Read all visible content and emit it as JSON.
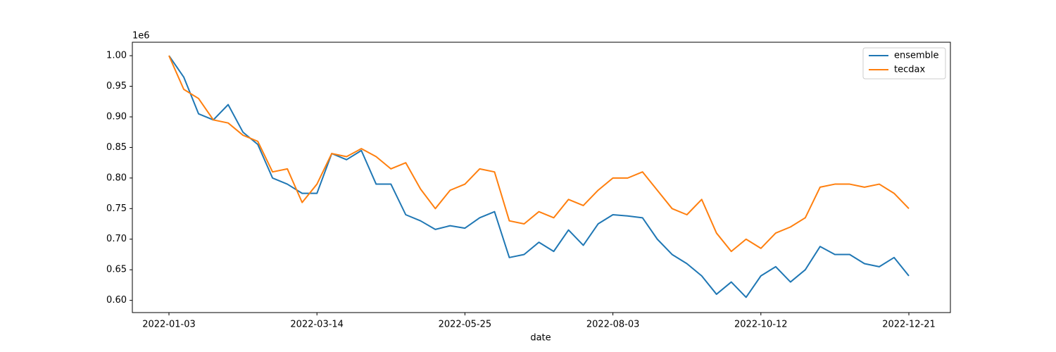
{
  "chart_data": {
    "type": "line",
    "xlabel": "date",
    "y_offset_label": "1e6",
    "categories": [
      "2022-01-03",
      null,
      null,
      null,
      null,
      null,
      null,
      null,
      null,
      null,
      "2022-03-14",
      null,
      null,
      null,
      null,
      null,
      null,
      null,
      null,
      null,
      "2022-05-25",
      null,
      null,
      null,
      null,
      null,
      null,
      null,
      null,
      null,
      "2022-08-03",
      null,
      null,
      null,
      null,
      null,
      null,
      null,
      null,
      null,
      "2022-10-12",
      null,
      null,
      null,
      null,
      null,
      null,
      null,
      null,
      null,
      "2022-12-21"
    ],
    "series": [
      {
        "name": "ensemble",
        "color": "#1f77b4",
        "values": [
          1.0,
          0.965,
          0.905,
          0.895,
          0.92,
          0.875,
          0.855,
          0.8,
          0.79,
          0.775,
          0.775,
          0.84,
          0.83,
          0.845,
          0.79,
          0.79,
          0.74,
          0.73,
          0.716,
          0.722,
          0.718,
          0.735,
          0.745,
          0.67,
          0.675,
          0.695,
          0.68,
          0.715,
          0.69,
          0.725,
          0.74,
          0.738,
          0.735,
          0.7,
          0.675,
          0.66,
          0.64,
          0.61,
          0.63,
          0.605,
          0.64,
          0.655,
          0.63,
          0.65,
          0.688,
          0.675,
          0.675,
          0.66,
          0.655,
          0.67,
          0.64
        ]
      },
      {
        "name": "tecdax",
        "color": "#ff7f0e",
        "values": [
          1.0,
          0.945,
          0.93,
          0.895,
          0.89,
          0.87,
          0.86,
          0.81,
          0.815,
          0.76,
          0.79,
          0.84,
          0.835,
          0.848,
          0.835,
          0.815,
          0.825,
          0.782,
          0.75,
          0.78,
          0.79,
          0.815,
          0.81,
          0.73,
          0.725,
          0.745,
          0.735,
          0.765,
          0.755,
          0.78,
          0.8,
          0.8,
          0.81,
          0.78,
          0.75,
          0.74,
          0.765,
          0.71,
          0.68,
          0.7,
          0.685,
          0.71,
          0.72,
          0.735,
          0.785,
          0.79,
          0.79,
          0.785,
          0.79,
          0.775,
          0.75
        ]
      }
    ],
    "ylim": [
      0.58,
      1.022
    ],
    "yticks": [
      {
        "value": 0.6,
        "label": "0.60"
      },
      {
        "value": 0.65,
        "label": "0.65"
      },
      {
        "value": 0.7,
        "label": "0.70"
      },
      {
        "value": 0.75,
        "label": "0.75"
      },
      {
        "value": 0.8,
        "label": "0.80"
      },
      {
        "value": 0.85,
        "label": "0.85"
      },
      {
        "value": 0.9,
        "label": "0.90"
      },
      {
        "value": 0.95,
        "label": "0.95"
      },
      {
        "value": 1.0,
        "label": "1.00"
      }
    ],
    "grid": false,
    "legend": "upper right"
  }
}
